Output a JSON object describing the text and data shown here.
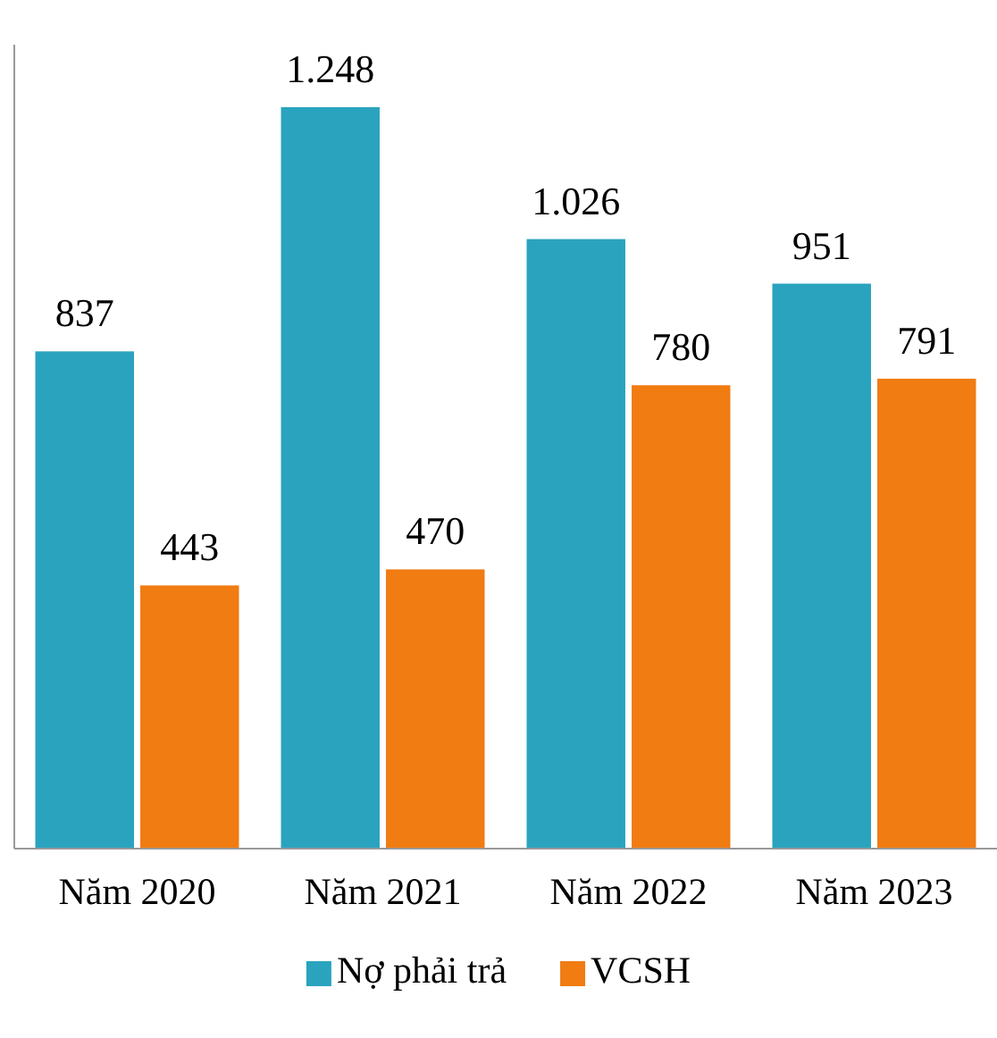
{
  "chart_data": {
    "type": "bar",
    "categories": [
      "Năm 2020",
      "Năm 2021",
      "Năm 2022",
      "Năm 2023"
    ],
    "series": [
      {
        "name": "Nợ phải trả",
        "color": "#2aa3bf",
        "values": [
          837,
          1248,
          1026,
          951
        ],
        "value_labels": [
          "837",
          "1.248",
          "1.026",
          "951"
        ]
      },
      {
        "name": "VCSH",
        "color": "#f07c12",
        "values": [
          443,
          470,
          780,
          791
        ],
        "value_labels": [
          "443",
          "470",
          "780",
          "791"
        ]
      }
    ],
    "legend": "bottom"
  }
}
